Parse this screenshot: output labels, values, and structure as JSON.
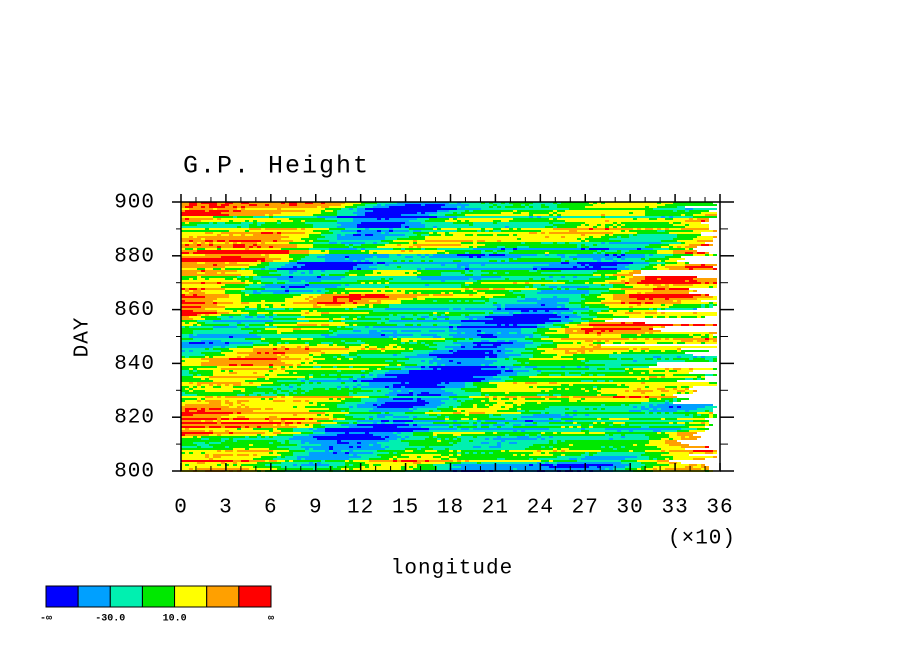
{
  "chart_data": {
    "type": "contour",
    "title": "G.P. Height",
    "xlabel": "longitude",
    "ylabel": "DAY",
    "x_scale_label": "(×10)",
    "xlim": [
      0,
      36
    ],
    "xticks": [
      0,
      3,
      6,
      9,
      12,
      15,
      18,
      21,
      24,
      27,
      30,
      33,
      36
    ],
    "ylim": [
      800,
      900
    ],
    "yticks": [
      800,
      820,
      840,
      860,
      880,
      900
    ],
    "colorbar": {
      "colors": [
        "#0000ff",
        "#00a0ff",
        "#00f0b0",
        "#00e800",
        "#ffff00",
        "#ffa000",
        "#ff0000"
      ],
      "labels": [
        "-∞",
        "-30.0",
        "10.0",
        "∞"
      ]
    }
  }
}
